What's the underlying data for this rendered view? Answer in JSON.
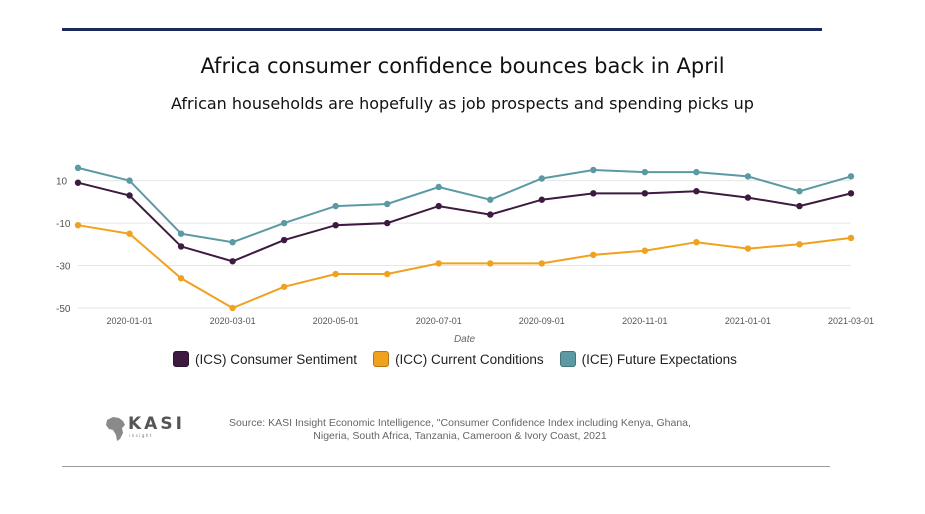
{
  "header": {
    "title": "Africa consumer confidence bounces back in April",
    "subtitle": "African households are hopefully as job prospects and spending picks up"
  },
  "chart_data": {
    "type": "line",
    "title": "Africa consumer confidence bounces back in April",
    "xlabel": "Date",
    "ylabel": "",
    "ylim": [
      -50,
      15
    ],
    "yticks": [
      10,
      -10,
      -30,
      -50
    ],
    "xticks": [
      "2020-01-01",
      "2020-03-01",
      "2020-05-01",
      "2020-07-01",
      "2020-09-01",
      "2020-11-01",
      "2021-01-01",
      "2021-03-01"
    ],
    "x": [
      "2019-12",
      "2020-01",
      "2020-02",
      "2020-03",
      "2020-04",
      "2020-05",
      "2020-06",
      "2020-07",
      "2020-08",
      "2020-09",
      "2020-10",
      "2020-11",
      "2020-12",
      "2021-01",
      "2021-02",
      "2021-03"
    ],
    "series": [
      {
        "name": "(ICS) Consumer Sentiment",
        "color": "#3d1a40",
        "values": [
          9,
          3,
          -21,
          -28,
          -18,
          -11,
          -10,
          -2,
          -6,
          1,
          4,
          4,
          5,
          2,
          -2,
          4
        ]
      },
      {
        "name": "(ICC) Current Conditions",
        "color": "#f0a21e",
        "values": [
          -11,
          -15,
          -36,
          -50,
          -40,
          -34,
          -34,
          -29,
          -29,
          -29,
          -25,
          -23,
          -19,
          -22,
          -20,
          -17
        ]
      },
      {
        "name": "(ICE) Future Expectations",
        "color": "#5b9aa2",
        "values": [
          16,
          10,
          -15,
          -19,
          -10,
          -2,
          -1,
          7,
          1,
          11,
          15,
          14,
          14,
          12,
          5,
          12
        ]
      }
    ]
  },
  "legend": {
    "items": [
      {
        "label": "(ICS) Consumer Sentiment",
        "color": "#3d1a40"
      },
      {
        "label": "(ICC) Current Conditions",
        "color": "#f0a21e"
      },
      {
        "label": "(ICE) Future Expectations",
        "color": "#5b9aa2"
      }
    ]
  },
  "footer": {
    "logo_text": "KASI",
    "logo_subtext": "insight",
    "source_line1": "Source: KASI Insight Economic Intelligence, \"Consumer Confidence Index including Kenya, Ghana,",
    "source_line2": "Nigeria, South Africa, Tanzania, Cameroon & Ivory Coast, 2021"
  }
}
